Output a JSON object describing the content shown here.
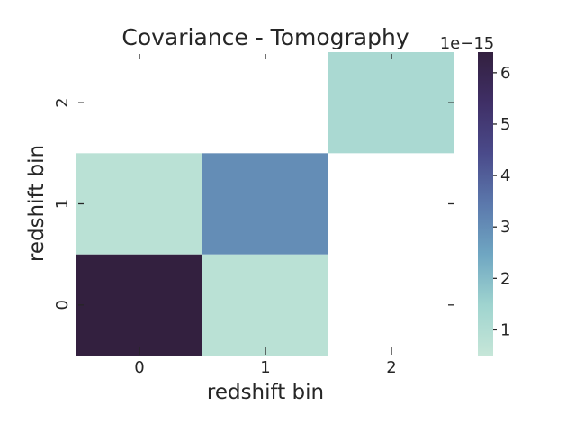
{
  "chart_data": {
    "type": "heatmap",
    "title": "Covariance - Tomography",
    "xlabel": "redshift bin",
    "ylabel": "redshift bin",
    "x_categories": [
      "0",
      "1",
      "2"
    ],
    "y_categories": [
      "0",
      "1",
      "2"
    ],
    "cells": [
      {
        "x": "0",
        "y": "0",
        "value": 6.4e-15
      },
      {
        "x": "1",
        "y": "0",
        "value": 8e-16
      },
      {
        "x": "0",
        "y": "1",
        "value": 8e-16
      },
      {
        "x": "1",
        "y": "1",
        "value": 3e-15
      },
      {
        "x": "2",
        "y": "2",
        "value": 1.2e-15
      }
    ],
    "colorbar": {
      "offset_label": "1e−15",
      "ticks": [
        "1",
        "2",
        "3",
        "4",
        "5",
        "6"
      ],
      "range": [
        0.5,
        6.4
      ],
      "colormap": [
        "#c6e6d8",
        "#9fd4cf",
        "#6fa6c2",
        "#5b78ac",
        "#4a4a8a",
        "#3f2f66",
        "#33203f"
      ]
    },
    "grid": false
  }
}
